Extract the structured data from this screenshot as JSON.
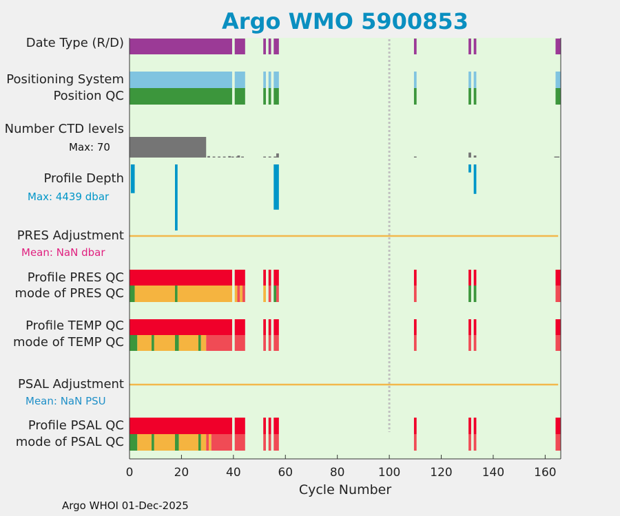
{
  "title": "Argo WMO 5900853",
  "footer": "Argo WHOI 01-Dec-2025",
  "colors": {
    "title": "#0a8fc0",
    "background": "#e4f8de",
    "date_type": "#9b3a96",
    "positioning": "#80c4e0",
    "qc_good": "#3c963c",
    "qc_bad": "#f0002a",
    "qc_probably_bad": "#f5b440",
    "qc_bad_light": "#f04b55",
    "ctd": "#757575",
    "depth": "#0096c8",
    "adjustment_line": "#f2b84b",
    "mean_pres_label": "#e0207f",
    "mean_psal_label": "#2090c8",
    "vline": "#c0c0c0"
  },
  "labels": {
    "date_type": "Date Type (R/D)",
    "positioning_system": "Positioning System",
    "position_qc": "Position QC",
    "number_ctd_levels": "Number CTD levels",
    "ctd_max": "Max: 70",
    "profile_depth": "Profile Depth",
    "depth_max": "Max: 4439 dbar",
    "pres_adjustment": "PRES Adjustment",
    "pres_mean": "Mean:  NaN dbar",
    "profile_pres_qc": "Profile PRES QC",
    "mode_pres_qc": "mode of PRES QC",
    "profile_temp_qc": "Profile TEMP QC",
    "mode_temp_qc": "mode of TEMP QC",
    "psal_adjustment": "PSAL Adjustment",
    "psal_mean": "Mean:  NaN PSU",
    "profile_psal_qc": "Profile PSAL QC",
    "mode_psal_qc": "mode of PSAL QC"
  },
  "chart_data": {
    "type": "bar",
    "title": "Argo WMO 5900853",
    "xlabel": "Cycle Number",
    "xlim": [
      0,
      166
    ],
    "xticks": [
      0,
      20,
      40,
      60,
      80,
      100,
      120,
      140,
      160
    ],
    "xtick_labels": [
      "0",
      "20",
      "40",
      "60",
      "80",
      "100",
      "120",
      "140",
      "160"
    ],
    "vertical_line_cycle": 100,
    "segments": {
      "present": [
        [
          0,
          39.5
        ],
        [
          40.5,
          44.5
        ],
        [
          51.5,
          52.5
        ],
        [
          53.5,
          54.5
        ],
        [
          55.5,
          57.5
        ],
        [
          109.5,
          110.5
        ],
        [
          130.5,
          131.5
        ],
        [
          132.5,
          133.5
        ],
        [
          164,
          166
        ]
      ],
      "position_qc_good": [
        [
          0,
          39.5
        ],
        [
          40.5,
          44.5
        ],
        [
          51.5,
          52.5
        ],
        [
          53.5,
          54.5
        ],
        [
          55.5,
          57.5
        ],
        [
          109.5,
          110.5
        ],
        [
          130.5,
          131.5
        ],
        [
          132.5,
          133.5
        ],
        [
          164,
          166
        ]
      ],
      "mode_pres_qc": [
        {
          "range": [
            0,
            2
          ],
          "flag": "good"
        },
        {
          "range": [
            2,
            17.5
          ],
          "flag": "probably_bad"
        },
        {
          "range": [
            17.5,
            18.5
          ],
          "flag": "good"
        },
        {
          "range": [
            18.5,
            39.5
          ],
          "flag": "probably_bad"
        },
        {
          "range": [
            40.5,
            41.5
          ],
          "flag": "probably_bad"
        },
        {
          "range": [
            41.5,
            42.5
          ],
          "flag": "bad_light"
        },
        {
          "range": [
            42.5,
            43.5
          ],
          "flag": "probably_bad"
        },
        {
          "range": [
            43.5,
            44.5
          ],
          "flag": "bad_light"
        },
        {
          "range": [
            51.5,
            52.5
          ],
          "flag": "probably_bad"
        },
        {
          "range": [
            53.5,
            54.5
          ],
          "flag": "bad_light"
        },
        {
          "range": [
            55.5,
            56.5
          ],
          "flag": "good"
        },
        {
          "range": [
            56.5,
            57.5
          ],
          "flag": "bad_light"
        },
        {
          "range": [
            109.5,
            110.5
          ],
          "flag": "bad_light"
        },
        {
          "range": [
            130.5,
            131.5
          ],
          "flag": "good"
        },
        {
          "range": [
            132.5,
            133.5
          ],
          "flag": "good"
        },
        {
          "range": [
            164,
            166
          ],
          "flag": "bad_light"
        }
      ],
      "mode_temp_qc": [
        {
          "range": [
            0,
            3
          ],
          "flag": "good"
        },
        {
          "range": [
            3,
            8.5
          ],
          "flag": "probably_bad"
        },
        {
          "range": [
            8.5,
            9.5
          ],
          "flag": "good"
        },
        {
          "range": [
            9.5,
            17.5
          ],
          "flag": "probably_bad"
        },
        {
          "range": [
            17.5,
            19
          ],
          "flag": "good"
        },
        {
          "range": [
            19,
            26.5
          ],
          "flag": "probably_bad"
        },
        {
          "range": [
            26.5,
            27.5
          ],
          "flag": "good"
        },
        {
          "range": [
            27.5,
            29.5
          ],
          "flag": "probably_bad"
        },
        {
          "range": [
            29.5,
            39.5
          ],
          "flag": "bad_light"
        },
        {
          "range": [
            40.5,
            44.5
          ],
          "flag": "bad_light"
        },
        {
          "range": [
            51.5,
            52.5
          ],
          "flag": "bad_light"
        },
        {
          "range": [
            53.5,
            54.5
          ],
          "flag": "bad_light"
        },
        {
          "range": [
            55.5,
            57.5
          ],
          "flag": "bad_light"
        },
        {
          "range": [
            109.5,
            110.5
          ],
          "flag": "bad_light"
        },
        {
          "range": [
            130.5,
            131.5
          ],
          "flag": "bad_light"
        },
        {
          "range": [
            132.5,
            133.5
          ],
          "flag": "bad_light"
        },
        {
          "range": [
            164,
            166
          ],
          "flag": "bad_light"
        }
      ],
      "mode_psal_qc": [
        {
          "range": [
            0,
            3
          ],
          "flag": "good"
        },
        {
          "range": [
            3,
            8.5
          ],
          "flag": "probably_bad"
        },
        {
          "range": [
            8.5,
            9.5
          ],
          "flag": "good"
        },
        {
          "range": [
            9.5,
            17.5
          ],
          "flag": "probably_bad"
        },
        {
          "range": [
            17.5,
            19
          ],
          "flag": "good"
        },
        {
          "range": [
            19,
            26.5
          ],
          "flag": "probably_bad"
        },
        {
          "range": [
            26.5,
            27.5
          ],
          "flag": "good"
        },
        {
          "range": [
            27.5,
            29.5
          ],
          "flag": "probably_bad"
        },
        {
          "range": [
            29.5,
            30.5
          ],
          "flag": "bad_light"
        },
        {
          "range": [
            30.5,
            31.5
          ],
          "flag": "probably_bad"
        },
        {
          "range": [
            31.5,
            39.5
          ],
          "flag": "bad_light"
        },
        {
          "range": [
            40.5,
            44.5
          ],
          "flag": "bad_light"
        },
        {
          "range": [
            51.5,
            52.5
          ],
          "flag": "bad_light"
        },
        {
          "range": [
            53.5,
            54.5
          ],
          "flag": "bad_light"
        },
        {
          "range": [
            55.5,
            57.5
          ],
          "flag": "bad_light"
        },
        {
          "range": [
            109.5,
            110.5
          ],
          "flag": "bad_light"
        },
        {
          "range": [
            130.5,
            131.5
          ],
          "flag": "bad_light"
        },
        {
          "range": [
            132.5,
            133.5
          ],
          "flag": "bad_light"
        },
        {
          "range": [
            164,
            166
          ],
          "flag": "bad_light"
        }
      ]
    },
    "ctd_levels": {
      "max": 70,
      "bars": [
        {
          "range": [
            0,
            29.5
          ],
          "value": 70
        },
        {
          "range": [
            30,
            31
          ],
          "value": 5
        },
        {
          "range": [
            32,
            33
          ],
          "value": 2
        },
        {
          "range": [
            34,
            35
          ],
          "value": 2
        },
        {
          "range": [
            36,
            37
          ],
          "value": 1
        },
        {
          "range": [
            38,
            39
          ],
          "value": 5
        },
        {
          "range": [
            39.2,
            40.2
          ],
          "value": 1
        },
        {
          "range": [
            41,
            42
          ],
          "value": 3
        },
        {
          "range": [
            41.5,
            42.5
          ],
          "value": 7
        },
        {
          "range": [
            43,
            44
          ],
          "value": 1
        },
        {
          "range": [
            51.5,
            52.5
          ],
          "value": 1
        },
        {
          "range": [
            53.5,
            54.5
          ],
          "value": 1
        },
        {
          "range": [
            55.5,
            56.5
          ],
          "value": 2
        },
        {
          "range": [
            56.5,
            57.5
          ],
          "value": 14
        },
        {
          "range": [
            109.5,
            110.5
          ],
          "value": 1
        },
        {
          "range": [
            130.5,
            131.5
          ],
          "value": 17
        },
        {
          "range": [
            132.5,
            133.5
          ],
          "value": 7
        },
        {
          "range": [
            163.5,
            165.5
          ],
          "value": 1
        }
      ]
    },
    "profile_depth": {
      "max_dbar": 4439,
      "bars": [
        {
          "range": [
            0.5,
            2
          ],
          "depth": 1930
        },
        {
          "range": [
            17.5,
            18.5
          ],
          "depth": 4439
        },
        {
          "range": [
            55.5,
            57.5
          ],
          "depth": 3040
        },
        {
          "range": [
            130.5,
            131.5
          ],
          "depth": 540
        },
        {
          "range": [
            132.5,
            133.5
          ],
          "depth": 1980
        }
      ]
    },
    "pres_adjustment_mean": "NaN",
    "psal_adjustment_mean": "NaN"
  }
}
